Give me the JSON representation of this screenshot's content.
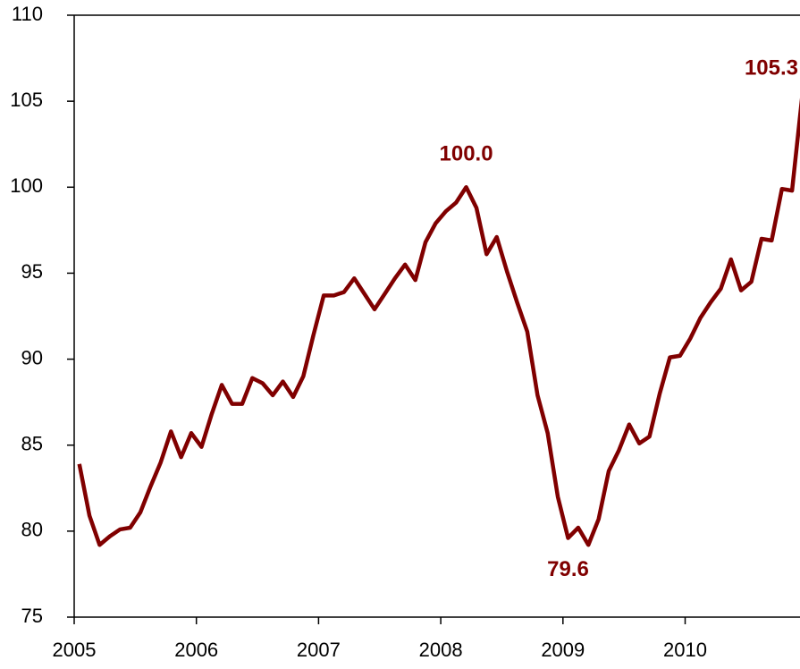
{
  "chart_data": {
    "type": "line",
    "x": [
      2005.042,
      2005.125,
      2005.208,
      2005.292,
      2005.375,
      2005.458,
      2005.542,
      2005.625,
      2005.708,
      2005.792,
      2005.875,
      2005.958,
      2006.042,
      2006.125,
      2006.208,
      2006.292,
      2006.375,
      2006.458,
      2006.542,
      2006.625,
      2006.708,
      2006.792,
      2006.875,
      2006.958,
      2007.042,
      2007.125,
      2007.208,
      2007.292,
      2007.375,
      2007.458,
      2007.542,
      2007.625,
      2007.708,
      2007.792,
      2007.875,
      2007.958,
      2008.042,
      2008.125,
      2008.208,
      2008.292,
      2008.375,
      2008.458,
      2008.542,
      2008.625,
      2008.708,
      2008.792,
      2008.875,
      2008.958,
      2009.042,
      2009.125,
      2009.208,
      2009.292,
      2009.375,
      2009.458,
      2009.542,
      2009.625,
      2009.708,
      2009.792,
      2009.875,
      2009.958,
      2010.042,
      2010.125,
      2010.208,
      2010.292,
      2010.375,
      2010.458,
      2010.542,
      2010.625,
      2010.708,
      2010.792,
      2010.875,
      2010.958
    ],
    "series": [
      {
        "color": "#800000",
        "values": [
          83.9,
          80.9,
          79.2,
          79.7,
          80.1,
          80.2,
          81.1,
          82.6,
          84.0,
          85.8,
          84.3,
          85.7,
          84.9,
          86.8,
          88.5,
          87.4,
          87.4,
          88.9,
          88.6,
          87.9,
          88.7,
          87.8,
          89.0,
          91.4,
          93.7,
          93.7,
          93.9,
          94.7,
          93.8,
          92.9,
          93.8,
          94.7,
          95.5,
          94.6,
          96.8,
          97.9,
          98.6,
          99.1,
          100.0,
          98.8,
          96.1,
          97.1,
          95.1,
          93.3,
          91.6,
          87.9,
          85.7,
          82.0,
          79.6,
          80.2,
          79.2,
          80.7,
          83.5,
          84.7,
          86.2,
          85.1,
          85.5,
          88.0,
          90.1,
          90.2,
          91.2,
          92.4,
          93.3,
          94.1,
          95.8,
          94.0,
          94.5,
          97.0,
          96.9,
          99.9,
          99.8,
          105.3
        ],
        "value_labels": [
          null,
          null,
          null,
          null,
          null,
          null,
          null,
          null,
          null,
          null,
          null,
          null,
          null,
          null,
          null,
          null,
          null,
          null,
          null,
          null,
          null,
          null,
          null,
          null,
          null,
          null,
          null,
          null,
          null,
          null,
          null,
          null,
          null,
          null,
          null,
          null,
          null,
          null,
          "100.0",
          null,
          null,
          null,
          null,
          null,
          null,
          null,
          null,
          null,
          "79.6",
          null,
          null,
          null,
          null,
          null,
          null,
          null,
          null,
          null,
          null,
          null,
          null,
          null,
          null,
          null,
          null,
          null,
          null,
          null,
          null,
          null,
          null,
          "105.3"
        ]
      }
    ],
    "xlim": [
      2005,
      2010.94
    ],
    "xticks": [
      2005,
      2006,
      2007,
      2008,
      2009,
      2010
    ],
    "ylim": [
      75,
      110
    ],
    "yticks": [
      75,
      80,
      85,
      90,
      95,
      100,
      105,
      110
    ]
  }
}
